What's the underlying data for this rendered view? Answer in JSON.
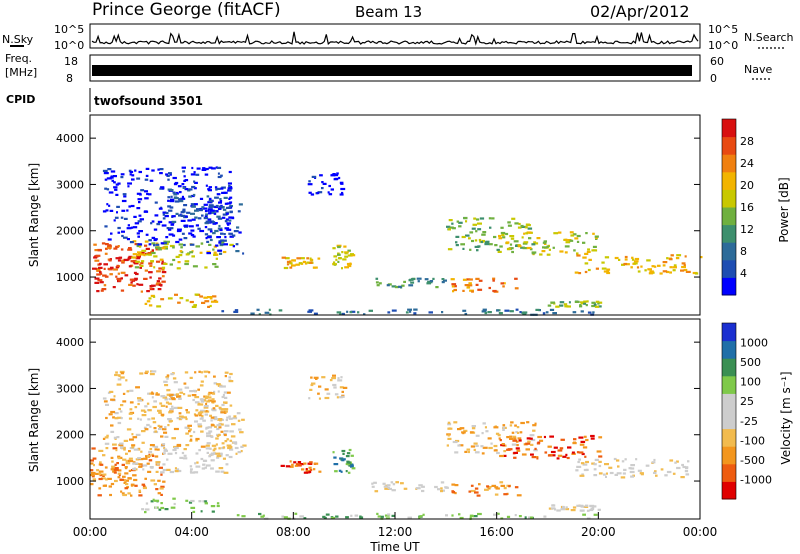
{
  "header": {
    "title": "Prince George (fitACF)",
    "beam": "Beam 13",
    "date": "02/Apr/2012"
  },
  "panels": {
    "nsky": {
      "label": "N.Sky",
      "ticks": [
        "10^5",
        "10^0"
      ],
      "right_label": "N.Search",
      "right_ticks": [
        "10^5",
        "10^0"
      ]
    },
    "freq": {
      "label_lines": [
        "Freq.",
        "[MHz]"
      ],
      "ticks": [
        "18",
        "8"
      ],
      "right_label": "Nave",
      "right_ticks": [
        "60",
        "0"
      ]
    },
    "cpid": {
      "label": "CPID",
      "value": "twofsound 3501"
    }
  },
  "chart_data": [
    {
      "type": "heatmap",
      "title": "",
      "xlabel": "",
      "ylabel": "Slant Range [km]",
      "xlim": [
        0,
        24
      ],
      "ylim": [
        180,
        4500
      ],
      "y_ticks": [
        "1000",
        "2000",
        "3000",
        "4000"
      ],
      "colorbar": {
        "label": "Power [dB]",
        "ticks": [
          "28",
          "24",
          "20",
          "16",
          "12",
          "8",
          "4"
        ],
        "colors": [
          "#0000ff",
          "#1e4db2",
          "#2d6b99",
          "#3d8f6d",
          "#6fb03f",
          "#c8c800",
          "#f2b400",
          "#f08010",
          "#e84a12",
          "#d81010"
        ]
      }
    },
    {
      "type": "heatmap",
      "title": "",
      "xlabel": "Time UT",
      "ylabel": "Slant Range [km]",
      "xlim": [
        0,
        24
      ],
      "ylim": [
        180,
        4500
      ],
      "x_ticks": [
        "00:00",
        "04:00",
        "08:00",
        "12:00",
        "16:00",
        "20:00",
        "00:00"
      ],
      "y_ticks": [
        "1000",
        "2000",
        "3000",
        "4000"
      ],
      "colorbar": {
        "label": "Velocity [m s⁻¹]",
        "ticks": [
          "1000",
          "500",
          "100",
          "25",
          "-25",
          "-100",
          "-500",
          "-1000"
        ],
        "colors": [
          "#e00000",
          "#ee5c10",
          "#f3961e",
          "#f2bb4e",
          "#cdcdcd",
          "#cdcdcd",
          "#7fc94a",
          "#3a8f53",
          "#1f6fa8",
          "#1a2fd0"
        ]
      }
    }
  ],
  "scatter_regions": [
    {
      "t0": 0.0,
      "t1": 2.9,
      "r0": 700,
      "r1": 1750,
      "power_q": 8,
      "vel_q": 2
    },
    {
      "t0": 0.0,
      "t1": 1.8,
      "r0": 900,
      "r1": 1500,
      "power_q": 9,
      "vel_q": 2
    },
    {
      "t0": 1.5,
      "t1": 5.5,
      "r0": 1200,
      "r1": 1800,
      "power_q": 5,
      "vel_q": 4
    },
    {
      "t0": 4.5,
      "t1": 6.0,
      "r0": 1500,
      "r1": 2600,
      "power_q": 1,
      "vel_q": 4
    },
    {
      "t0": 2.0,
      "t1": 5.0,
      "r0": 350,
      "r1": 650,
      "power_q": 6,
      "vel_q": 6
    },
    {
      "t0": 0.5,
      "t1": 5.5,
      "r0": 1700,
      "r1": 3400,
      "power_q": 0,
      "vel_q": 3
    },
    {
      "t0": 3.0,
      "t1": 5.5,
      "r0": 2200,
      "r1": 3000,
      "power_q": 1,
      "vel_q": 3
    },
    {
      "t0": 7.5,
      "t1": 9.0,
      "r0": 1200,
      "r1": 1450,
      "power_q": 6,
      "vel_q": 1
    },
    {
      "t0": 8.5,
      "t1": 10.0,
      "r0": 2800,
      "r1": 3300,
      "power_q": 0,
      "vel_q": 3
    },
    {
      "t0": 9.5,
      "t1": 10.3,
      "r0": 1200,
      "r1": 1700,
      "power_q": 5,
      "vel_q": 7
    },
    {
      "t0": 11.0,
      "t1": 14.0,
      "r0": 800,
      "r1": 1000,
      "power_q": 3,
      "vel_q": 4
    },
    {
      "t0": 14.0,
      "t1": 16.8,
      "r0": 700,
      "r1": 1000,
      "power_q": 7,
      "vel_q": 2
    },
    {
      "t0": 14.0,
      "t1": 17.5,
      "r0": 1600,
      "r1": 2300,
      "power_q": 4,
      "vel_q": 3
    },
    {
      "t0": 16.0,
      "t1": 20.0,
      "r0": 1500,
      "r1": 2000,
      "power_q": 5,
      "vel_q": 1
    },
    {
      "t0": 19.0,
      "t1": 24.0,
      "r0": 1100,
      "r1": 1500,
      "power_q": 6,
      "vel_q": 4
    },
    {
      "t0": 18.0,
      "t1": 20.0,
      "r0": 380,
      "r1": 500,
      "power_q": 4,
      "vel_q": 4
    },
    {
      "t0": 5.0,
      "t1": 20.0,
      "r0": 200,
      "r1": 320,
      "power_q": 2,
      "vel_q": 6
    }
  ]
}
